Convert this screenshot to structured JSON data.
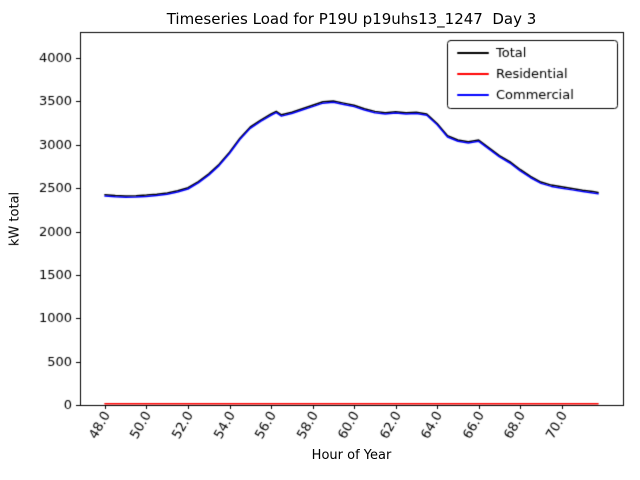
{
  "chart_data": {
    "type": "line",
    "title": "Timeseries Load for P19U p19uhs13_1247  Day 3",
    "xlabel": "Hour of Year",
    "ylabel": "kW total",
    "xlim": [
      46.8,
      72.95
    ],
    "ylim": [
      0,
      4300
    ],
    "grid": false,
    "xticks": [
      48,
      50,
      52,
      54,
      56,
      58,
      60,
      62,
      64,
      66,
      68,
      70
    ],
    "xtick_labels": [
      "48.0",
      "50.0",
      "52.0",
      "54.0",
      "56.0",
      "58.0",
      "60.0",
      "62.0",
      "64.0",
      "66.0",
      "68.0",
      "70.0"
    ],
    "xtick_rotation_deg": 60,
    "yticks": [
      0,
      500,
      1000,
      1500,
      2000,
      2500,
      3000,
      3500,
      4000
    ],
    "ytick_labels": [
      "0",
      "500",
      "1000",
      "1500",
      "2000",
      "2500",
      "3000",
      "3500",
      "4000"
    ],
    "legend": {
      "position": "upper right",
      "entries": [
        {
          "label": "Total",
          "color": "#000000"
        },
        {
          "label": "Residential",
          "color": "#ff0000"
        },
        {
          "label": "Commercial",
          "color": "#0000ff"
        }
      ]
    },
    "x": [
      48,
      48.5,
      49,
      49.5,
      50,
      50.5,
      51,
      51.5,
      52,
      52.5,
      53,
      53.5,
      54,
      54.5,
      55,
      55.5,
      56,
      56.25,
      56.5,
      57,
      57.5,
      58,
      58.5,
      59,
      59.5,
      60,
      60.5,
      61,
      61.5,
      62,
      62.5,
      63,
      63.5,
      64,
      64.5,
      65,
      65.5,
      66,
      66.5,
      67,
      67.5,
      68,
      68.5,
      69,
      69.5,
      70,
      70.5,
      71,
      71.5,
      71.75
    ],
    "series": [
      {
        "name": "Total",
        "color": "#000000",
        "linewidth": 1.5,
        "values": [
          2425,
          2415,
          2410,
          2413,
          2420,
          2430,
          2445,
          2470,
          2505,
          2575,
          2665,
          2775,
          2915,
          3075,
          3205,
          3285,
          3355,
          3385,
          3345,
          3375,
          3415,
          3455,
          3495,
          3505,
          3480,
          3455,
          3415,
          3385,
          3370,
          3380,
          3370,
          3375,
          3355,
          3245,
          3105,
          3055,
          3035,
          3055,
          2965,
          2875,
          2805,
          2715,
          2635,
          2570,
          2535,
          2515,
          2495,
          2475,
          2460,
          2450
        ]
      },
      {
        "name": "Residential",
        "color": "#ff0000",
        "linewidth": 1.5,
        "values": [
          15,
          15,
          15,
          15,
          15,
          15,
          15,
          15,
          15,
          15,
          15,
          15,
          15,
          15,
          15,
          15,
          15,
          15,
          15,
          15,
          15,
          15,
          15,
          15,
          15,
          15,
          15,
          15,
          15,
          15,
          15,
          15,
          15,
          15,
          15,
          15,
          15,
          15,
          15,
          15,
          15,
          15,
          15,
          15,
          15,
          15,
          15,
          15,
          15,
          15
        ]
      },
      {
        "name": "Commercial",
        "color": "#0000ff",
        "linewidth": 1.5,
        "values": [
          2410,
          2400,
          2395,
          2398,
          2405,
          2415,
          2430,
          2455,
          2490,
          2560,
          2650,
          2760,
          2900,
          3060,
          3190,
          3270,
          3340,
          3370,
          3330,
          3360,
          3400,
          3440,
          3480,
          3490,
          3465,
          3440,
          3400,
          3370,
          3355,
          3365,
          3355,
          3360,
          3340,
          3230,
          3090,
          3040,
          3020,
          3040,
          2950,
          2860,
          2790,
          2700,
          2620,
          2555,
          2520,
          2500,
          2480,
          2460,
          2445,
          2435
        ]
      }
    ]
  }
}
